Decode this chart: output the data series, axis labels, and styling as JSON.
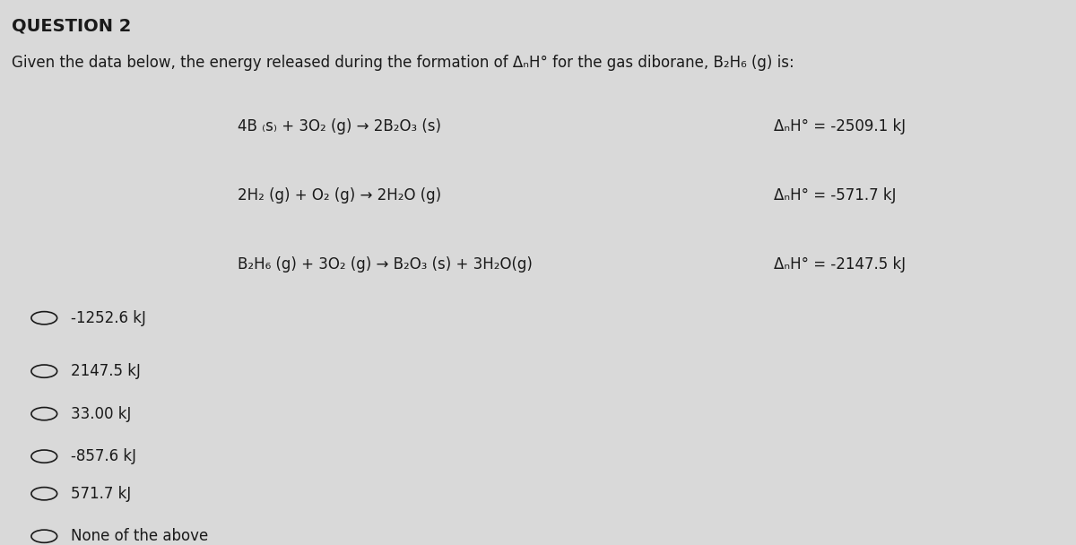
{
  "title": "QUESTION 2",
  "subtitle": "Given the data below, the energy released during the formation of ΔᴹH° for the gas diborane, B₂H₆ (g) is:",
  "reactions": [
    {
      "left": "4B",
      "left_sub1": "(s)",
      "middle1": " + 3O",
      "middle1_sub": "2",
      "middle2": " (g) → 2B",
      "middle2_sub": "2",
      "middle3": "O",
      "middle3_sub2": "3",
      "middle4": " (s)",
      "dH": "ΔᴹH° = -2509.1 kJ"
    },
    {
      "left": "2H",
      "left_sub1": "2",
      "middle1": " (g) + O",
      "middle1_sub": "2",
      "middle2": " (g) → 2H",
      "middle2_sub": "2",
      "middle3": "O (g)",
      "middle3_sub2": "",
      "middle4": "",
      "dH": "ΔᴹH° = -571.7 kJ"
    },
    {
      "left": "B",
      "left_sub1": "2",
      "middle1": "H",
      "middle1_sub": "6",
      "middle2": " (g) + 3O",
      "middle2_sub": "2",
      "middle3": " (g) → B",
      "middle3_sub2": "2",
      "middle4": "O₃ (s) + 3H₂O(g)",
      "dH": "ΔᴹH° = -2147.5 kJ"
    }
  ],
  "choices": [
    "-1252.6 kJ",
    "2147.5 kJ",
    "33.00 kJ",
    "-857.6 kJ",
    "571.7 kJ",
    "None of the above"
  ],
  "bg_color": "#d9d9d9",
  "text_color": "#1a1a1a",
  "font_size_title": 14,
  "font_size_body": 12
}
